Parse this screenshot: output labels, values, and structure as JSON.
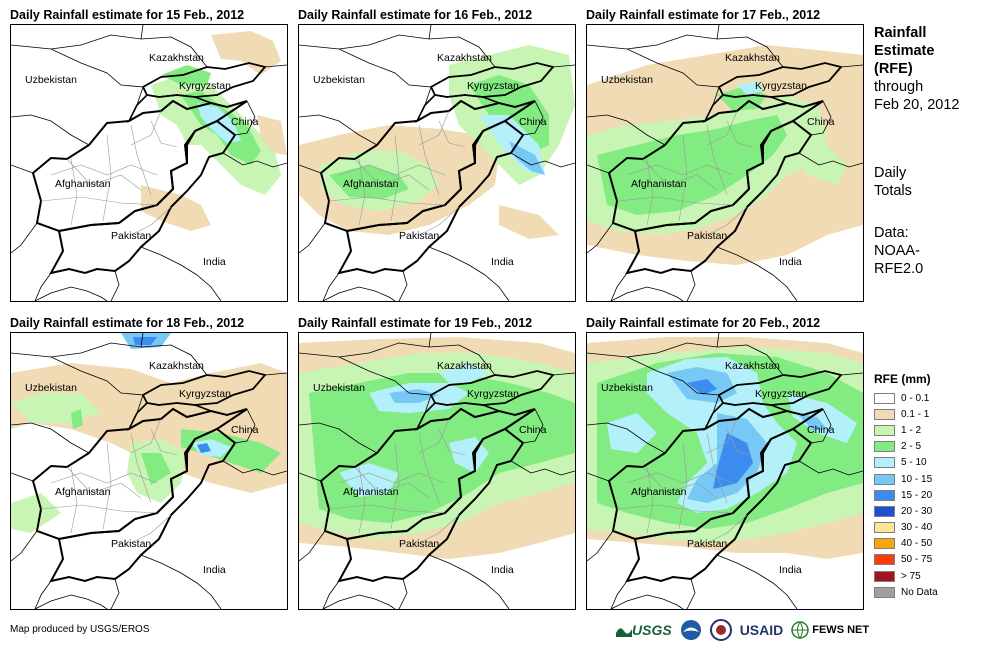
{
  "panels": [
    {
      "title": "Daily Rainfall estimate for 15 Feb., 2012"
    },
    {
      "title": "Daily Rainfall estimate for 16 Feb., 2012"
    },
    {
      "title": "Daily Rainfall estimate for 17 Feb., 2012"
    },
    {
      "title": "Daily Rainfall estimate for 18 Feb., 2012"
    },
    {
      "title": "Daily Rainfall estimate for 19 Feb., 2012"
    },
    {
      "title": "Daily Rainfall estimate for 20 Feb., 2012"
    }
  ],
  "labels": {
    "kazakhstan": "Kazakhstan",
    "uzbekistan": "Uzbekistan",
    "kyrgyzstan": "Kyrgyzstan",
    "china": "China",
    "afghanistan": "Afghanistan",
    "pakistan": "Pakistan",
    "india": "India"
  },
  "sidebar": {
    "title_1": "Rainfall",
    "title_2": "Estimate",
    "title_3": "(RFE)",
    "through": "through",
    "date": "Feb 20, 2012",
    "daily_1": "Daily",
    "daily_2": "Totals",
    "data_1": "Data:",
    "data_2": "NOAA-",
    "data_3": "RFE2.0"
  },
  "legend": {
    "title": "RFE (mm)",
    "items": [
      {
        "label": "0 - 0.1",
        "color": "#ffffff"
      },
      {
        "label": "0.1 - 1",
        "color": "#f0dbb4"
      },
      {
        "label": "1 - 2",
        "color": "#c8f5b4"
      },
      {
        "label": "2 - 5",
        "color": "#82eb82"
      },
      {
        "label": "5 - 10",
        "color": "#b4f0fa"
      },
      {
        "label": "10 - 15",
        "color": "#78c8f5"
      },
      {
        "label": "15 - 20",
        "color": "#3c8cf0"
      },
      {
        "label": "20 - 30",
        "color": "#1e50d2"
      },
      {
        "label": "30 - 40",
        "color": "#fae696"
      },
      {
        "label": "40 - 50",
        "color": "#faa50a"
      },
      {
        "label": "50 - 75",
        "color": "#fa3c0a"
      },
      {
        "label": "> 75",
        "color": "#a0141e"
      },
      {
        "label": "No Data",
        "color": "#a0a0a0"
      }
    ]
  },
  "footer": {
    "credit": "Map produced by USGS/EROS",
    "usgs": "USGS",
    "usaid": "USAID",
    "fews": "FEWS NET"
  }
}
